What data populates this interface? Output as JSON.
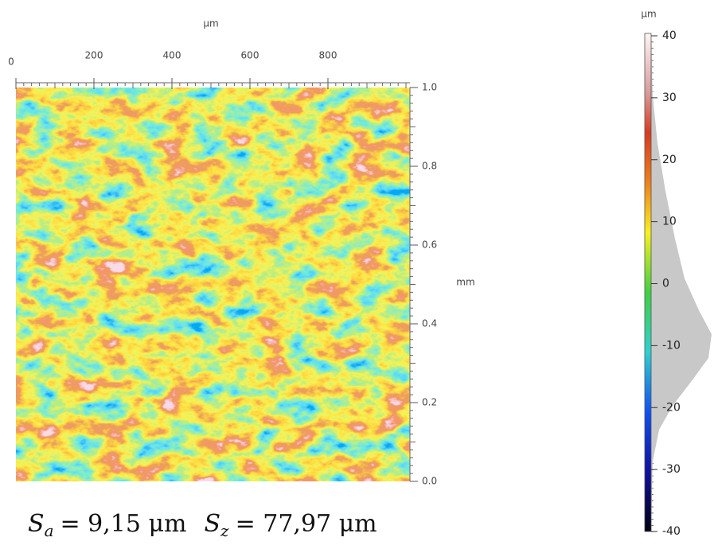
{
  "top_axis": {
    "unit": "µm",
    "range": [
      0,
      1000
    ],
    "ticks": [
      0,
      200,
      400,
      600,
      800
    ]
  },
  "right_axis": {
    "unit": "mm",
    "range": [
      0,
      1
    ],
    "ticks": [
      {
        "value": 0,
        "label": "0.0"
      },
      {
        "value": 0.2,
        "label": "0.2"
      },
      {
        "value": 0.4,
        "label": "0.4"
      },
      {
        "value": 0.6,
        "label": "0.6"
      },
      {
        "value": 0.8,
        "label": "0.8"
      },
      {
        "value": 1,
        "label": "1.0"
      }
    ]
  },
  "colorbar": {
    "unit": "µm",
    "range": [
      -40,
      40
    ],
    "ticks": [
      40,
      30,
      20,
      10,
      0,
      -10,
      -20,
      -30,
      -40
    ]
  },
  "caption": [
    {
      "symbol": "S",
      "subscript": "a",
      "text": "= 9,15 μm"
    },
    {
      "symbol": "S",
      "subscript": "z",
      "text": "= 77,97 μm"
    }
  ]
}
